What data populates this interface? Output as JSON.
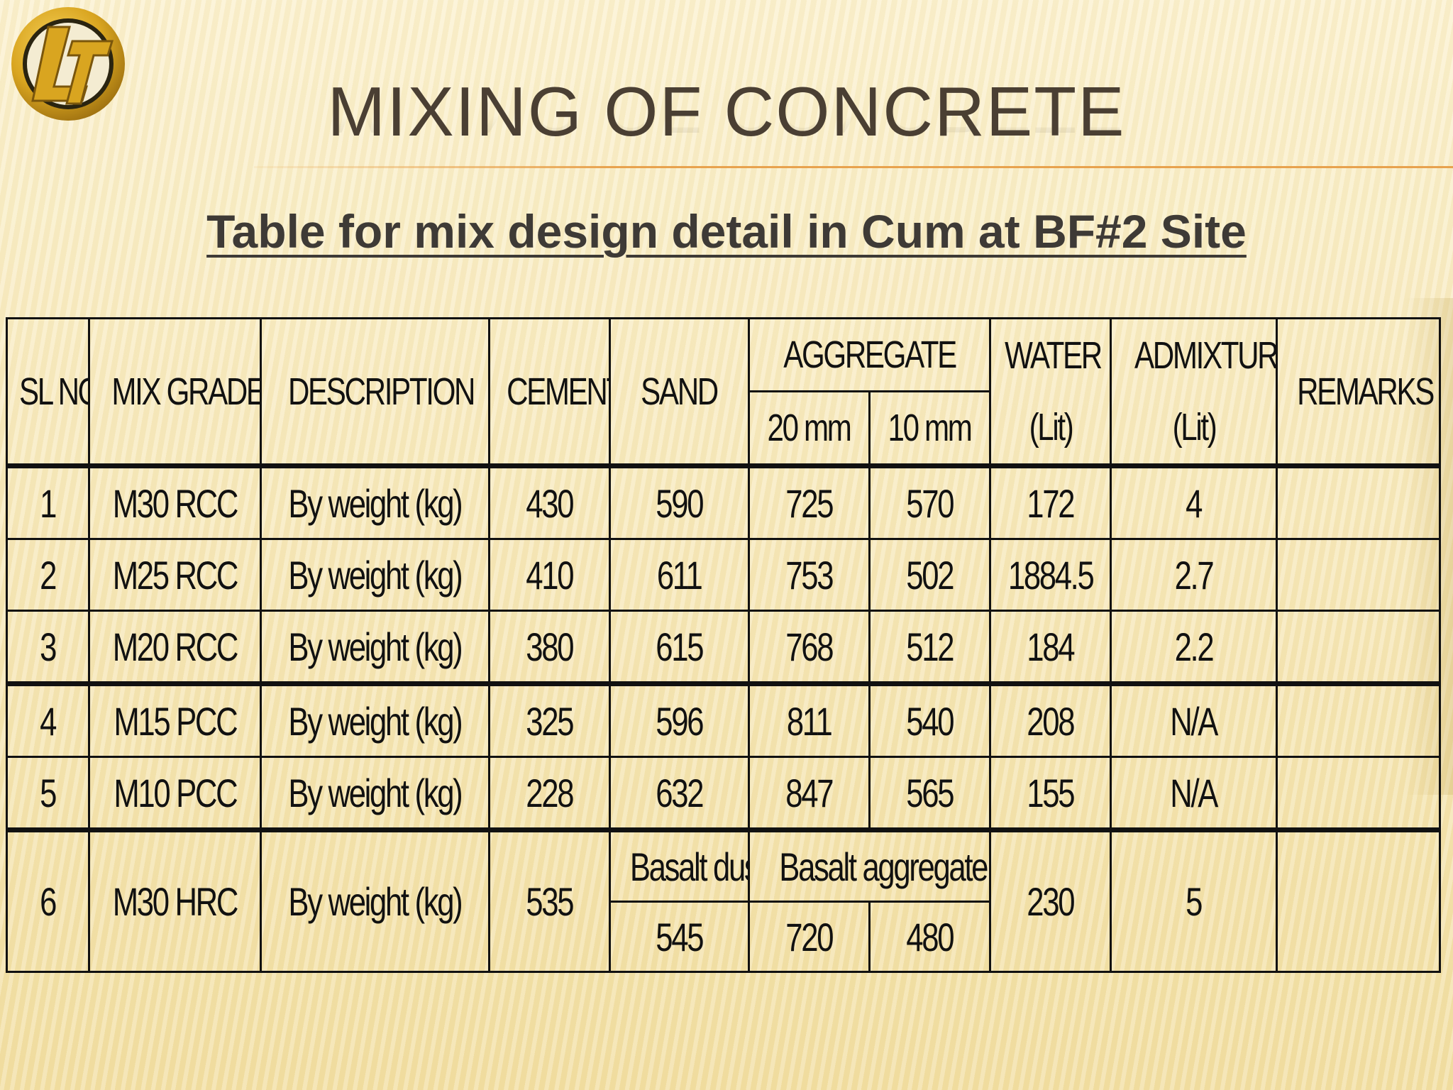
{
  "slide": {
    "title": "MIXING OF CONCRETE",
    "subtitle": "Table for mix design detail in Cum at BF#2 Site",
    "logo_icon": "lt-logo-icon",
    "accent_color": "#e8a24e",
    "logo_color": "#d9a520"
  },
  "table": {
    "headers": {
      "sl_no": "SL NO",
      "mix_grade": "MIX GRADE",
      "description": "DESCRIPTION",
      "cement": "CEMENT",
      "sand": "SAND",
      "aggregate": "AGGREGATE",
      "agg_20": "20 mm",
      "agg_10": "10 mm",
      "water": "WATER",
      "water_unit": "(Lit)",
      "admixture": "ADMIXTURE",
      "admixture_unit": "(Lit)",
      "remarks": "REMARKS"
    },
    "rows": [
      {
        "sl": "1",
        "grade": "M30 RCC",
        "desc": "By weight (kg)",
        "cement": "430",
        "sand": "590",
        "a20": "725",
        "a10": "570",
        "water": "172",
        "admix": "4",
        "remarks": ""
      },
      {
        "sl": "2",
        "grade": "M25 RCC",
        "desc": "By weight (kg)",
        "cement": "410",
        "sand": "611",
        "a20": "753",
        "a10": "502",
        "water": "1884.5",
        "admix": "2.7",
        "remarks": ""
      },
      {
        "sl": "3",
        "grade": "M20 RCC",
        "desc": "By weight (kg)",
        "cement": "380",
        "sand": "615",
        "a20": "768",
        "a10": "512",
        "water": "184",
        "admix": "2.2",
        "remarks": ""
      },
      {
        "sl": "4",
        "grade": "M15 PCC",
        "desc": "By weight (kg)",
        "cement": "325",
        "sand": "596",
        "a20": "811",
        "a10": "540",
        "water": "208",
        "admix": "N/A",
        "remarks": ""
      },
      {
        "sl": "5",
        "grade": "M10 PCC",
        "desc": "By weight (kg)",
        "cement": "228",
        "sand": "632",
        "a20": "847",
        "a10": "565",
        "water": "155",
        "admix": "N/A",
        "remarks": ""
      }
    ],
    "row6": {
      "sl": "6",
      "grade": "M30 HRC",
      "desc": "By weight (kg)",
      "cement": "535",
      "sand_label": "Basalt dust",
      "aggregate_label": "Basalt aggregate",
      "sand": "545",
      "a20": "720",
      "a10": "480",
      "water": "230",
      "admix": "5",
      "remarks": ""
    }
  }
}
